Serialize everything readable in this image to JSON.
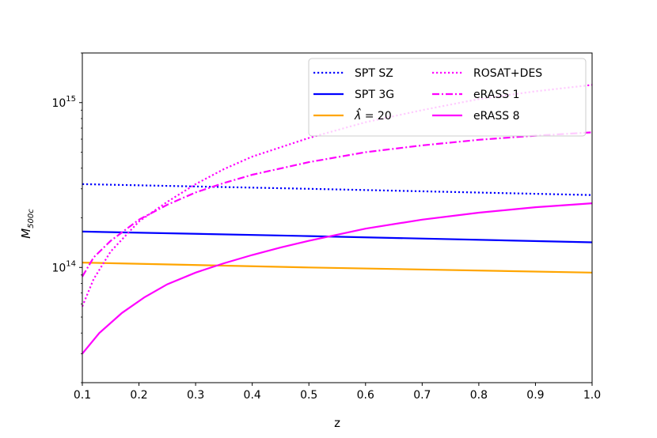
{
  "chart_data": {
    "type": "line",
    "title": "",
    "xlabel": "z",
    "ylabel_main": "M",
    "ylabel_sub": "500c",
    "yscale": "log",
    "xlim": [
      0.1,
      1.0
    ],
    "ylim": [
      20000000000000.0,
      2000000000000000.0
    ],
    "xticks": [
      0.1,
      0.2,
      0.3,
      0.4,
      0.5,
      0.6,
      0.7,
      0.8,
      0.9,
      1.0
    ],
    "xtick_labels": [
      "0.1",
      "0.2",
      "0.3",
      "0.4",
      "0.5",
      "0.6",
      "0.7",
      "0.8",
      "0.9",
      "1.0"
    ],
    "yticks": [
      {
        "value": 100000000000000.0,
        "base": "10",
        "exp": "14"
      },
      {
        "value": 1000000000000000.0,
        "base": "10",
        "exp": "15"
      }
    ],
    "legend_position": "top-right",
    "series": [
      {
        "name": "SPT SZ",
        "color": "#0000ff",
        "style": "dotted",
        "x": [
          0.1,
          0.5,
          1.0
        ],
        "y": [
          320000000000000.0,
          300000000000000.0,
          275000000000000.0
        ]
      },
      {
        "name": "SPT 3G",
        "color": "#0000ff",
        "style": "solid",
        "x": [
          0.1,
          0.5,
          1.0
        ],
        "y": [
          165000000000000.0,
          155000000000000.0,
          142000000000000.0
        ]
      },
      {
        "name": "λ̂ = 20",
        "legend_symbol": "λ̂",
        "legend_rest": " = 20",
        "color": "#ffa500",
        "style": "solid",
        "x": [
          0.1,
          0.5,
          1.0
        ],
        "y": [
          107000000000000.0,
          100000000000000.0,
          93000000000000.0
        ]
      },
      {
        "name": "ROSAT+DES",
        "color": "#ff00ff",
        "style": "dotted",
        "x": [
          0.1,
          0.12,
          0.15,
          0.2,
          0.25,
          0.3,
          0.35,
          0.4,
          0.5,
          0.6,
          0.7,
          0.8,
          0.9,
          1.0
        ],
        "y": [
          58000000000000.0,
          85000000000000.0,
          125000000000000.0,
          190000000000000.0,
          250000000000000.0,
          320000000000000.0,
          395000000000000.0,
          470000000000000.0,
          610000000000000.0,
          760000000000000.0,
          900000000000000.0,
          1050000000000000.0,
          1170000000000000.0,
          1280000000000000.0
        ]
      },
      {
        "name": "eRASS 1",
        "color": "#ff00ff",
        "style": "dashdot",
        "x": [
          0.1,
          0.12,
          0.15,
          0.2,
          0.25,
          0.3,
          0.35,
          0.4,
          0.5,
          0.6,
          0.7,
          0.8,
          0.9,
          1.0
        ],
        "y": [
          88000000000000.0,
          115000000000000.0,
          145000000000000.0,
          195000000000000.0,
          240000000000000.0,
          285000000000000.0,
          325000000000000.0,
          365000000000000.0,
          435000000000000.0,
          500000000000000.0,
          550000000000000.0,
          595000000000000.0,
          630000000000000.0,
          660000000000000.0
        ]
      },
      {
        "name": "eRASS 8",
        "color": "#ff00ff",
        "style": "solid",
        "x": [
          0.1,
          0.13,
          0.17,
          0.21,
          0.25,
          0.3,
          0.35,
          0.4,
          0.45,
          0.5,
          0.6,
          0.7,
          0.8,
          0.9,
          1.0
        ],
        "y": [
          30000000000000.0,
          40000000000000.0,
          53000000000000.0,
          66000000000000.0,
          79000000000000.0,
          93000000000000.0,
          106000000000000.0,
          119000000000000.0,
          132000000000000.0,
          145000000000000.0,
          172000000000000.0,
          195000000000000.0,
          215000000000000.0,
          232000000000000.0,
          245000000000000.0
        ]
      }
    ],
    "legend_columns": [
      [
        "SPT SZ",
        "SPT 3G",
        "λ̂ = 20"
      ],
      [
        "ROSAT+DES",
        "eRASS 1",
        "eRASS 8"
      ]
    ]
  }
}
